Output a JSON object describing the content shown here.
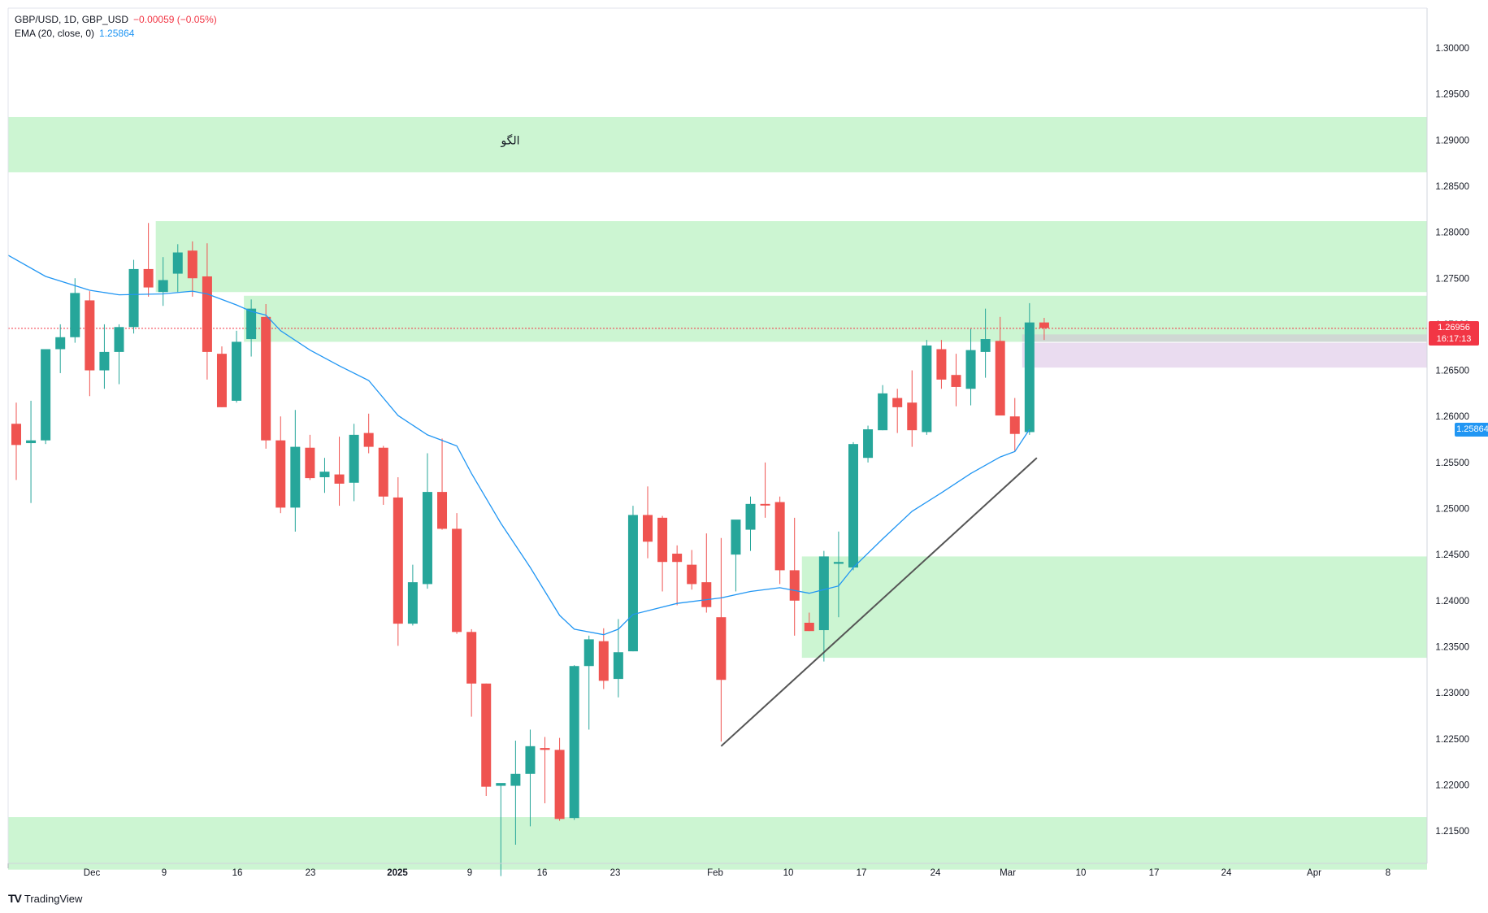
{
  "legend": {
    "symbol": "GBP/USD, 1D, GBP_USD",
    "change": "−0.00059 (−0.05%)",
    "ema_label": "EMA (20, close, 0)",
    "ema_value": "1.25864"
  },
  "brand": {
    "logo": "𝟏𝟕",
    "name": "TradingView"
  },
  "last_price": {
    "value": "1.26956",
    "countdown": "16:17:13"
  },
  "colors": {
    "up": "#26a69a",
    "down": "#ef5350",
    "ema": "#2196f3",
    "zone": "#ccf5d2",
    "zone_gray": "#cfd8d3",
    "zone_pink": "#eadcf0",
    "trendline": "#555555"
  },
  "chart_data": {
    "type": "candlestick",
    "title": "",
    "annotation": "الگو",
    "y_range": [
      1.2125,
      1.3045
    ],
    "y_ticks": [
      "1.30000",
      "1.29500",
      "1.29000",
      "1.28500",
      "1.28000",
      "1.27500",
      "1.27000",
      "1.26500",
      "1.26000",
      "1.25500",
      "1.25000",
      "1.24500",
      "1.24000",
      "1.23500",
      "1.23000",
      "1.22500",
      "1.22000",
      "1.21500"
    ],
    "x_ticks": [
      {
        "label": "Dec",
        "bold": false
      },
      {
        "label": "9",
        "bold": false
      },
      {
        "label": "16",
        "bold": false
      },
      {
        "label": "23",
        "bold": false
      },
      {
        "label": "2025",
        "bold": true
      },
      {
        "label": "9",
        "bold": false
      },
      {
        "label": "16",
        "bold": false
      },
      {
        "label": "23",
        "bold": false
      },
      {
        "label": "Feb",
        "bold": false
      },
      {
        "label": "10",
        "bold": false
      },
      {
        "label": "17",
        "bold": false
      },
      {
        "label": "24",
        "bold": false
      },
      {
        "label": "Mar",
        "bold": false
      },
      {
        "label": "10",
        "bold": false
      },
      {
        "label": "17",
        "bold": false
      },
      {
        "label": "24",
        "bold": false
      },
      {
        "label": "Apr",
        "bold": false
      },
      {
        "label": "8",
        "bold": false
      }
    ],
    "candles": [
      [
        1.2592,
        1.2615,
        1.2531,
        1.2569
      ],
      [
        1.2571,
        1.2617,
        1.2506,
        1.2574
      ],
      [
        1.2574,
        1.267,
        1.257,
        1.2673
      ],
      [
        1.2673,
        1.27,
        1.2647,
        1.2686
      ],
      [
        1.2686,
        1.275,
        1.268,
        1.2734
      ],
      [
        1.2726,
        1.2736,
        1.2622,
        1.265
      ],
      [
        1.265,
        1.27,
        1.263,
        1.267
      ],
      [
        1.267,
        1.27,
        1.2635,
        1.2697
      ],
      [
        1.2697,
        1.277,
        1.269,
        1.276
      ],
      [
        1.276,
        1.281,
        1.273,
        1.274
      ],
      [
        1.2735,
        1.2773,
        1.272,
        1.2748
      ],
      [
        1.2755,
        1.2787,
        1.2735,
        1.2778
      ],
      [
        1.278,
        1.279,
        1.273,
        1.275
      ],
      [
        1.2752,
        1.2788,
        1.264,
        1.267
      ],
      [
        1.2668,
        1.2676,
        1.261,
        1.261
      ],
      [
        1.2617,
        1.2693,
        1.2615,
        1.2681
      ],
      [
        1.2684,
        1.2727,
        1.2665,
        1.2717
      ],
      [
        1.2708,
        1.2722,
        1.2565,
        1.2574
      ],
      [
        1.2574,
        1.26,
        1.2495,
        1.2501
      ],
      [
        1.2501,
        1.2607,
        1.2475,
        1.2567
      ],
      [
        1.2566,
        1.258,
        1.2531,
        1.2533
      ],
      [
        1.2534,
        1.2555,
        1.2517,
        1.254
      ],
      [
        1.2537,
        1.2578,
        1.2503,
        1.2527
      ],
      [
        1.2528,
        1.2592,
        1.2508,
        1.258
      ],
      [
        1.2582,
        1.2603,
        1.256,
        1.2567
      ],
      [
        1.2566,
        1.2568,
        1.2504,
        1.2513
      ],
      [
        1.2512,
        1.2534,
        1.2351,
        1.2375
      ],
      [
        1.2375,
        1.2439,
        1.2373,
        1.242
      ],
      [
        1.2418,
        1.256,
        1.2413,
        1.2518
      ],
      [
        1.2518,
        1.2576,
        1.2477,
        1.2478
      ],
      [
        1.2478,
        1.2495,
        1.2364,
        1.2366
      ],
      [
        1.2366,
        1.2369,
        1.2274,
        1.231
      ],
      [
        1.231,
        1.231,
        1.2188,
        1.2198
      ],
      [
        1.2199,
        1.22,
        1.2101,
        1.2202
      ],
      [
        1.2199,
        1.2248,
        1.2135,
        1.2212
      ],
      [
        1.2212,
        1.226,
        1.2155,
        1.2242
      ],
      [
        1.224,
        1.2252,
        1.218,
        1.2238
      ],
      [
        1.2238,
        1.2251,
        1.2161,
        1.2163
      ],
      [
        1.2164,
        1.233,
        1.2162,
        1.2329
      ],
      [
        1.2329,
        1.2362,
        1.226,
        1.2358
      ],
      [
        1.2356,
        1.237,
        1.2304,
        1.2313
      ],
      [
        1.2315,
        1.238,
        1.2295,
        1.2344
      ],
      [
        1.2345,
        1.2503,
        1.2345,
        1.2493
      ],
      [
        1.2493,
        1.2524,
        1.2446,
        1.2464
      ],
      [
        1.249,
        1.2492,
        1.241,
        1.2442
      ],
      [
        1.2451,
        1.246,
        1.2395,
        1.2442
      ],
      [
        1.2439,
        1.2455,
        1.2412,
        1.2418
      ],
      [
        1.242,
        1.2473,
        1.2387,
        1.2393
      ],
      [
        1.2382,
        1.2468,
        1.2247,
        1.2314
      ],
      [
        1.245,
        1.2483,
        1.241,
        1.2488
      ],
      [
        1.2477,
        1.2513,
        1.2454,
        1.2505
      ],
      [
        1.2505,
        1.255,
        1.249,
        1.2504
      ],
      [
        1.2507,
        1.2513,
        1.2418,
        1.2433
      ],
      [
        1.2433,
        1.249,
        1.2362,
        1.24
      ],
      [
        1.2376,
        1.2387,
        1.2367,
        1.2367
      ],
      [
        1.2368,
        1.2454,
        1.2334,
        1.2448
      ],
      [
        1.244,
        1.2475,
        1.2382,
        1.2442
      ],
      [
        1.2436,
        1.2572,
        1.2433,
        1.257
      ],
      [
        1.2555,
        1.259,
        1.255,
        1.2586
      ],
      [
        1.2585,
        1.2634,
        1.2585,
        1.2625
      ],
      [
        1.262,
        1.263,
        1.2582,
        1.261
      ],
      [
        1.2615,
        1.265,
        1.2567,
        1.2585
      ],
      [
        1.2583,
        1.2683,
        1.258,
        1.2677
      ],
      [
        1.2673,
        1.2683,
        1.263,
        1.264
      ],
      [
        1.2645,
        1.2668,
        1.2611,
        1.2632
      ],
      [
        1.263,
        1.2695,
        1.2612,
        1.2672
      ],
      [
        1.267,
        1.2717,
        1.2642,
        1.2684
      ],
      [
        1.2682,
        1.2708,
        1.2604,
        1.2601
      ],
      [
        1.26,
        1.262,
        1.2562,
        1.2581
      ],
      [
        1.2583,
        1.2723,
        1.258,
        1.2702
      ],
      [
        1.2702,
        1.2707,
        1.2683,
        1.2696
      ]
    ],
    "ema20": [
      [
        0,
        1.2775
      ],
      [
        2,
        1.2752
      ],
      [
        5,
        1.2737
      ],
      [
        7,
        1.2732
      ],
      [
        10,
        1.2733
      ],
      [
        12,
        1.2736
      ],
      [
        13,
        1.2733
      ],
      [
        15,
        1.2721
      ],
      [
        16,
        1.2714
      ],
      [
        17,
        1.271
      ],
      [
        18,
        1.2693
      ],
      [
        20,
        1.2672
      ],
      [
        22,
        1.2655
      ],
      [
        24,
        1.2639
      ],
      [
        26,
        1.2601
      ],
      [
        28,
        1.258
      ],
      [
        30,
        1.2568
      ],
      [
        31,
        1.2538
      ],
      [
        33,
        1.2484
      ],
      [
        35,
        1.2436
      ],
      [
        37,
        1.2384
      ],
      [
        38,
        1.2369
      ],
      [
        40,
        1.2363
      ],
      [
        41,
        1.2369
      ],
      [
        42,
        1.2385
      ],
      [
        45,
        1.2397
      ],
      [
        48,
        1.2403
      ],
      [
        50,
        1.241
      ],
      [
        52,
        1.2414
      ],
      [
        54,
        1.2408
      ],
      [
        56,
        1.2416
      ],
      [
        57,
        1.2436
      ],
      [
        59,
        1.2467
      ],
      [
        61,
        1.2497
      ],
      [
        63,
        1.2517
      ],
      [
        65,
        1.2538
      ],
      [
        67,
        1.2556
      ],
      [
        68,
        1.2562
      ],
      [
        69,
        1.2586
      ]
    ],
    "zones": [
      {
        "from": 1.2865,
        "to": 1.2925,
        "start": "left",
        "color": "zone"
      },
      {
        "from": 1.2735,
        "to": 1.2812,
        "start": 9.5,
        "color": "zone"
      },
      {
        "from": 1.2681,
        "to": 1.2731,
        "start": 15.5,
        "color": "zone"
      },
      {
        "from": 1.2681,
        "to": 1.2689,
        "start": 68.5,
        "color": "zone_gray"
      },
      {
        "from": 1.2653,
        "to": 1.268,
        "start": 68.5,
        "color": "zone_pink"
      },
      {
        "from": 1.2338,
        "to": 1.2448,
        "start": 53.5,
        "color": "zone"
      },
      {
        "from": 1.2108,
        "to": 1.2165,
        "start": "left",
        "color": "zone"
      }
    ],
    "trendline": {
      "from": [
        48.0,
        1.2242
      ],
      "to": [
        69.5,
        1.2555
      ]
    },
    "last_price_line": 1.26956
  }
}
